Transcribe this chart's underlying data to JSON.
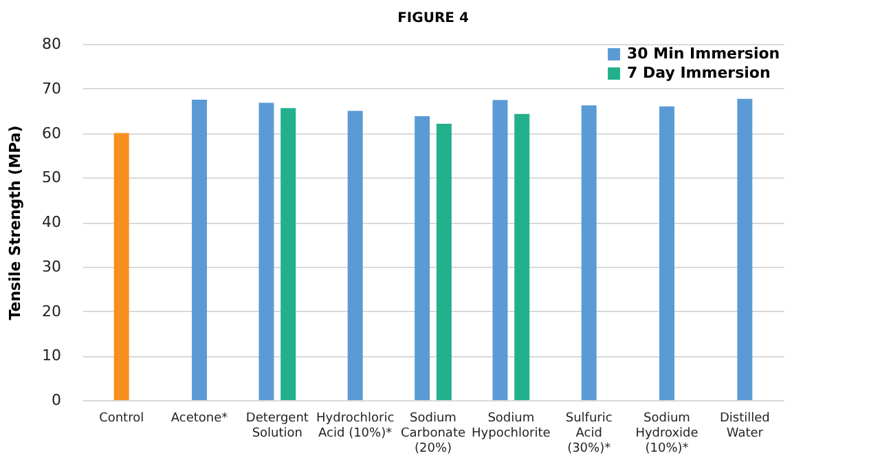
{
  "chart_data": {
    "type": "bar",
    "title": "FIGURE 4",
    "ylabel": "Tensile Strength (MPa)",
    "categories": [
      "Control",
      "Acetone*",
      "Detergent\nSolution",
      "Hydrochloric\nAcid (10%)*",
      "Sodium\nCarbonate\n(20%)",
      "Sodium\nHypochlorite",
      "Sulfuric\nAcid\n(30%)*",
      "Sodium\nHydroxide\n(10%)*",
      "Distilled\nWater"
    ],
    "series": [
      {
        "color": "#f7901e",
        "values": [
          60.0,
          null,
          null,
          null,
          null,
          null,
          null,
          null,
          null
        ]
      },
      {
        "name": "30 Min Immersion",
        "color": "#5b9bd5",
        "values": [
          null,
          67.5,
          66.8,
          65.0,
          63.8,
          67.4,
          66.2,
          66.0,
          67.7
        ]
      },
      {
        "name": "7 Day Immersion",
        "color": "#22b08d",
        "values": [
          null,
          null,
          65.6,
          null,
          62.1,
          64.3,
          null,
          null,
          null
        ]
      }
    ],
    "ylim": [
      0,
      80
    ],
    "yticks": [
      0,
      10,
      20,
      30,
      40,
      50,
      60,
      70,
      80
    ],
    "grid": "y",
    "legend": "top right"
  }
}
